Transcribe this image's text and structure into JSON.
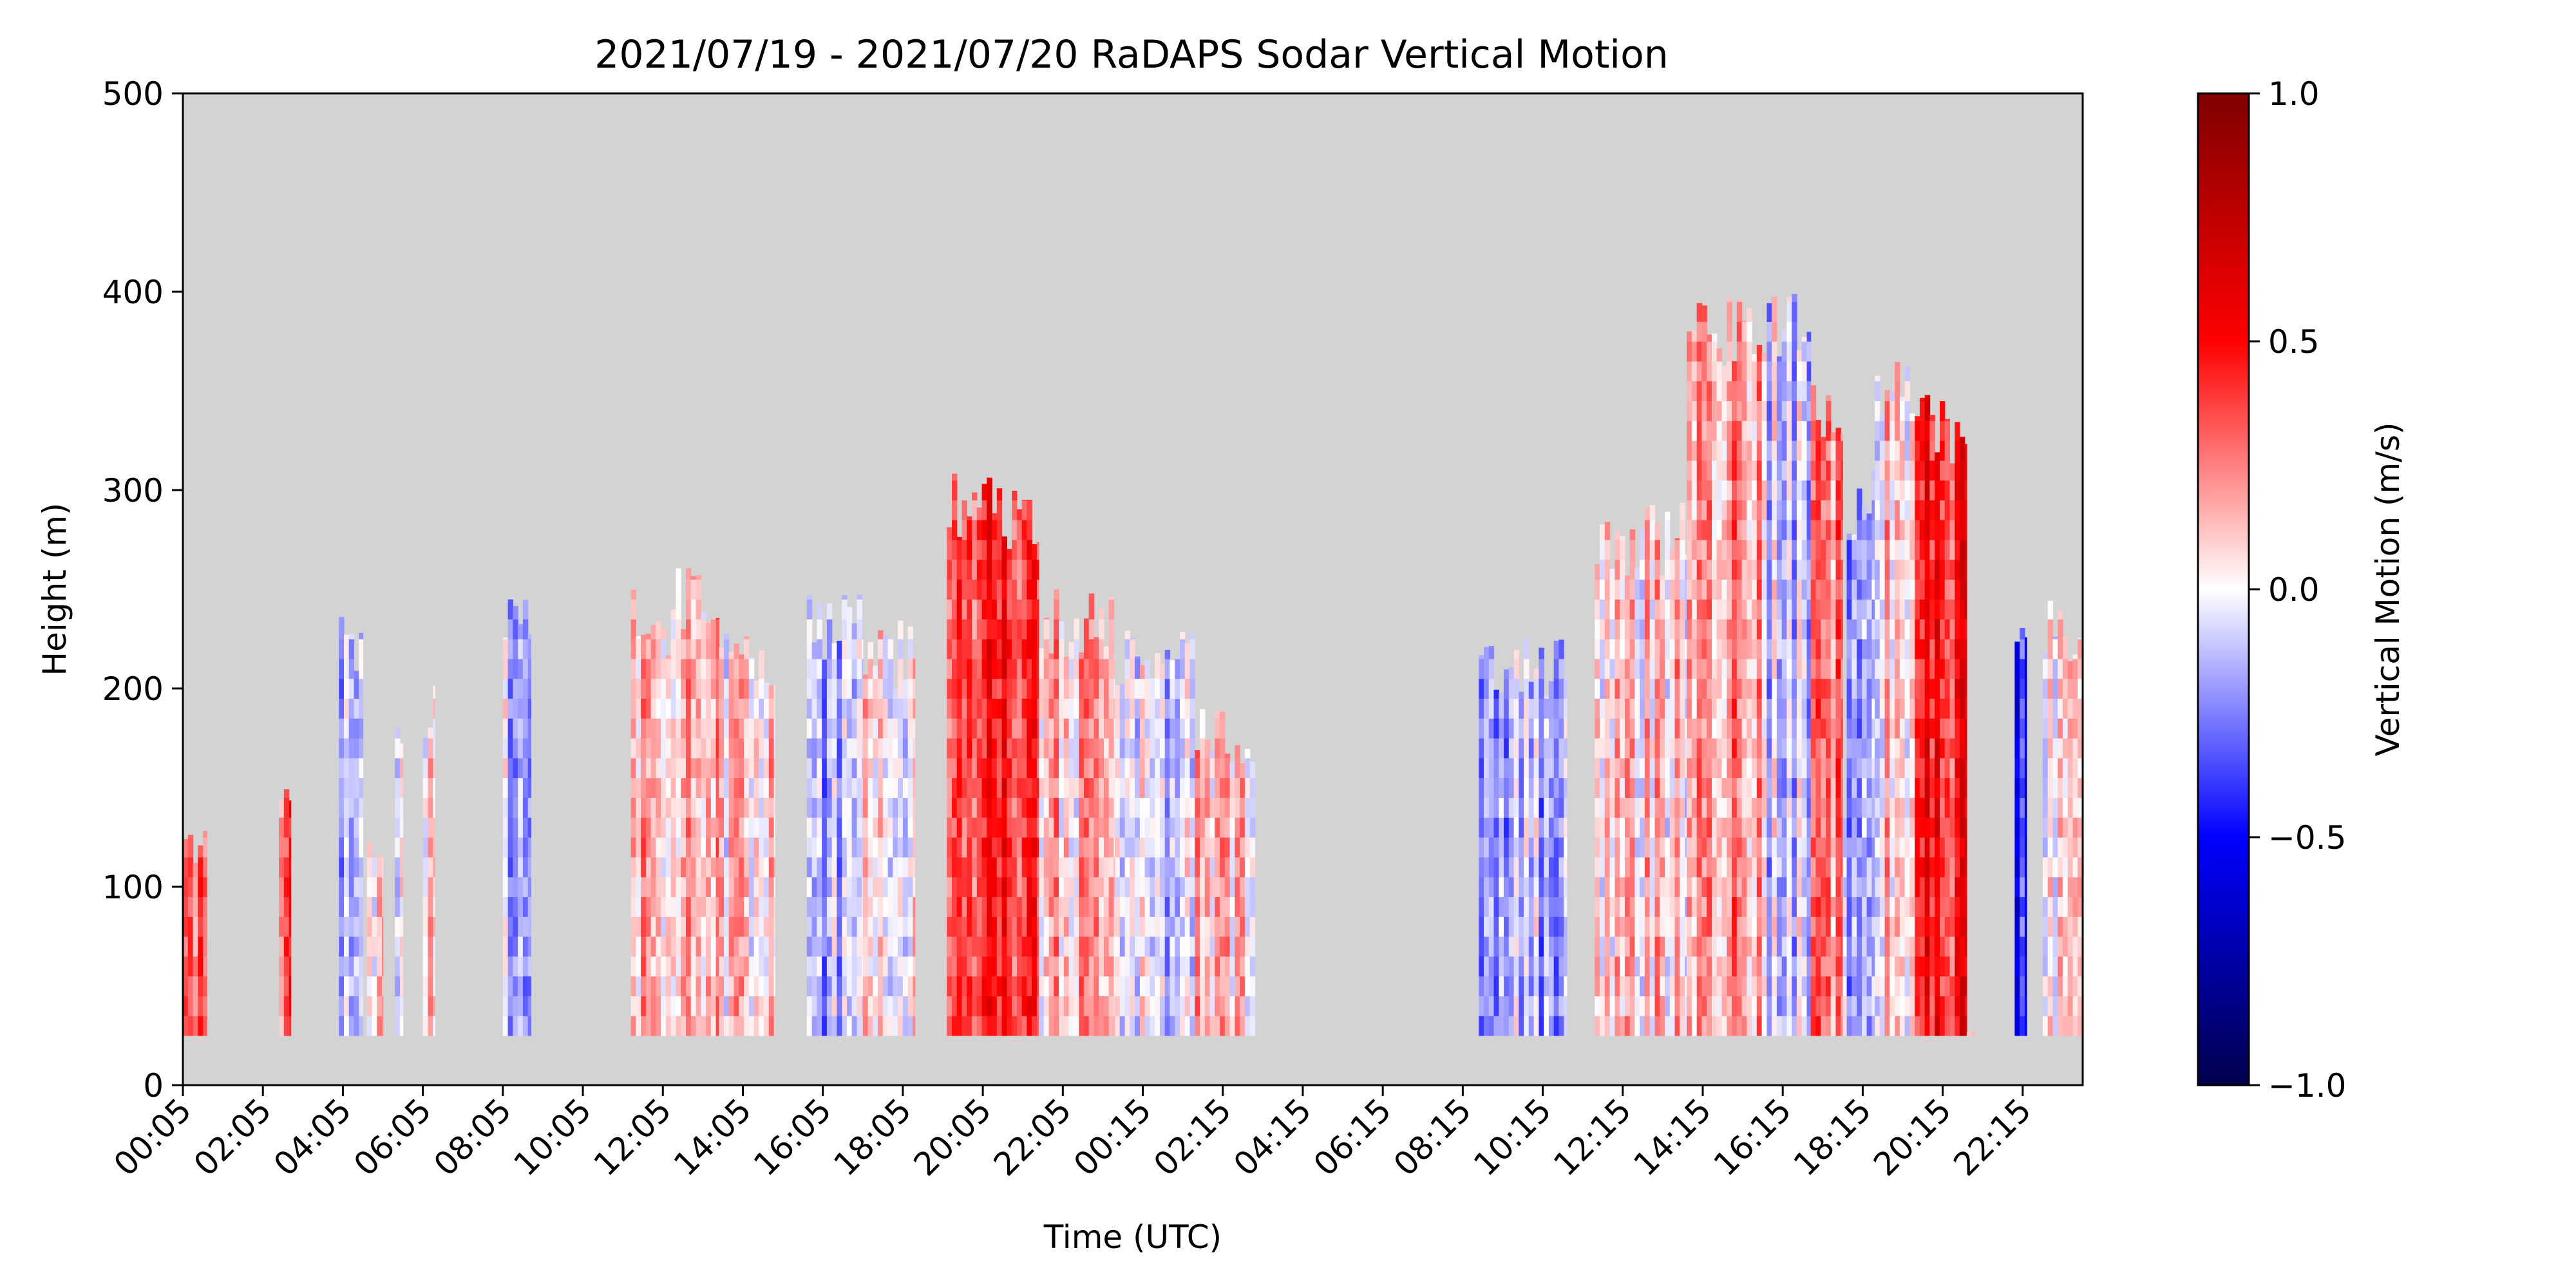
{
  "chart_data": {
    "type": "heatmap",
    "title": "2021/07/19 - 2021/07/20 RaDAPS Sodar Vertical Motion",
    "xlabel": "Time (UTC)",
    "ylabel": "Height (m)",
    "x_tick_labels": [
      "00:05",
      "02:05",
      "04:05",
      "06:05",
      "08:05",
      "10:05",
      "12:05",
      "14:05",
      "16:05",
      "18:05",
      "20:05",
      "22:05",
      "00:15",
      "02:15",
      "04:15",
      "06:15",
      "08:15",
      "10:15",
      "12:15",
      "14:15",
      "16:15",
      "18:15",
      "20:15",
      "22:15"
    ],
    "y_ticks": [
      0,
      100,
      200,
      300,
      400,
      500
    ],
    "ylim": [
      0,
      500
    ],
    "x_range_hours": [
      0,
      47.5
    ],
    "background_color": "#d3d3d3",
    "colorbar": {
      "label": "Vertical Motion (m/s)",
      "ticks": [
        1.0,
        0.5,
        0.0,
        -0.5,
        -1.0
      ],
      "tick_labels": [
        "1.0",
        "0.5",
        "0.0",
        "−0.5",
        "−1.0"
      ],
      "range": [
        -1.0,
        1.0
      ],
      "colormap": "seismic",
      "color_stops": [
        "#00004c",
        "#0000ff",
        "#ffffff",
        "#ff0000",
        "#800000"
      ]
    },
    "bottom_gate_m": 25,
    "data_segments": [
      {
        "start_h": 0.0,
        "end_h": 0.6,
        "top_m": 130,
        "bias": 0.25
      },
      {
        "start_h": 2.4,
        "end_h": 2.7,
        "top_m": 160,
        "bias": 0.35
      },
      {
        "start_h": 3.9,
        "end_h": 4.5,
        "top_m": 245,
        "bias": -0.1
      },
      {
        "start_h": 4.6,
        "end_h": 5.0,
        "top_m": 130,
        "bias": 0.05
      },
      {
        "start_h": 5.3,
        "end_h": 5.5,
        "top_m": 190,
        "bias": 0.0
      },
      {
        "start_h": 6.0,
        "end_h": 6.3,
        "top_m": 205,
        "bias": 0.0
      },
      {
        "start_h": 8.0,
        "end_h": 8.7,
        "top_m": 250,
        "bias": -0.08
      },
      {
        "start_h": 11.2,
        "end_h": 12.2,
        "top_m": 250,
        "bias": 0.15
      },
      {
        "start_h": 12.2,
        "end_h": 13.4,
        "top_m": 265,
        "bias": 0.15
      },
      {
        "start_h": 13.4,
        "end_h": 14.8,
        "top_m": 235,
        "bias": 0.08
      },
      {
        "start_h": 15.6,
        "end_h": 17.0,
        "top_m": 250,
        "bias": -0.15
      },
      {
        "start_h": 17.0,
        "end_h": 18.3,
        "top_m": 235,
        "bias": 0.05
      },
      {
        "start_h": 19.1,
        "end_h": 21.4,
        "top_m": 310,
        "bias": 0.4
      },
      {
        "start_h": 21.4,
        "end_h": 23.3,
        "top_m": 250,
        "bias": 0.12
      },
      {
        "start_h": 23.3,
        "end_h": 25.3,
        "top_m": 235,
        "bias": -0.05
      },
      {
        "start_h": 25.3,
        "end_h": 26.8,
        "top_m": 190,
        "bias": 0.1
      },
      {
        "start_h": 32.4,
        "end_h": 34.6,
        "top_m": 230,
        "bias": -0.15
      },
      {
        "start_h": 35.3,
        "end_h": 37.6,
        "top_m": 295,
        "bias": 0.1
      },
      {
        "start_h": 37.6,
        "end_h": 39.6,
        "top_m": 400,
        "bias": 0.2
      },
      {
        "start_h": 39.6,
        "end_h": 40.7,
        "top_m": 400,
        "bias": -0.1
      },
      {
        "start_h": 40.7,
        "end_h": 41.5,
        "top_m": 355,
        "bias": 0.25
      },
      {
        "start_h": 41.5,
        "end_h": 42.3,
        "top_m": 150,
        "bias": 0.05
      },
      {
        "start_h": 41.6,
        "end_h": 42.3,
        "top_m": 312,
        "bias": -0.2
      },
      {
        "start_h": 42.3,
        "end_h": 43.3,
        "top_m": 370,
        "bias": 0.1
      },
      {
        "start_h": 43.3,
        "end_h": 44.6,
        "top_m": 350,
        "bias": 0.45
      },
      {
        "start_h": 44.6,
        "end_h": 44.8,
        "top_m": 30,
        "bias": 0.05
      },
      {
        "start_h": 45.8,
        "end_h": 46.1,
        "top_m": 250,
        "bias": -0.45
      },
      {
        "start_h": 46.5,
        "end_h": 47.5,
        "top_m": 250,
        "bias": 0.0
      }
    ]
  }
}
